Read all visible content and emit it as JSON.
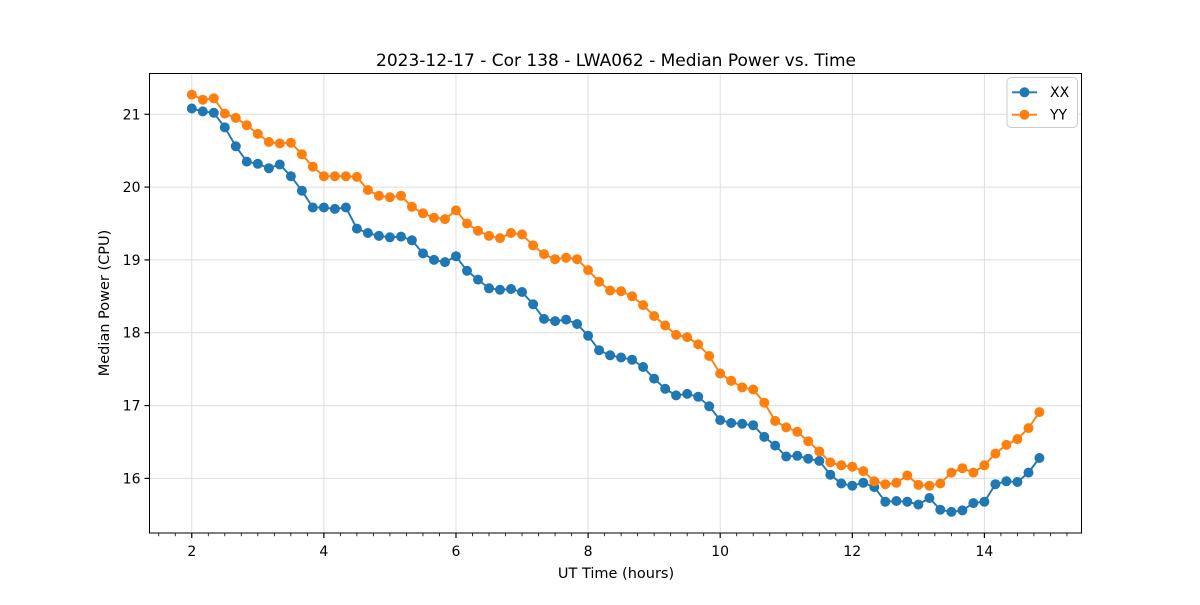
{
  "figure": {
    "background": "#ffffff",
    "spine_color": "#000000",
    "grid_color": "#dedede",
    "tick_color": "#000000"
  },
  "chart_data": {
    "type": "line",
    "title": "2023-12-17 - Cor 138 - LWA062 - Median Power vs. Time",
    "xlabel": "UT Time (hours)",
    "ylabel": "Median Power (CPU)",
    "xlim": [
      1.36,
      15.47
    ],
    "ylim": [
      15.25,
      21.56
    ],
    "x_major_ticks": [
      2,
      4,
      6,
      8,
      10,
      12,
      14
    ],
    "x_minor_tick_step": 0.25,
    "y_major_ticks": [
      16,
      17,
      18,
      19,
      20,
      21
    ],
    "grid": true,
    "legend": {
      "position": "upper right",
      "entries": [
        "XX",
        "YY"
      ]
    },
    "marker": "circle",
    "x": [
      2.0,
      2.167,
      2.333,
      2.5,
      2.667,
      2.833,
      3.0,
      3.167,
      3.333,
      3.5,
      3.667,
      3.833,
      4.0,
      4.167,
      4.333,
      4.5,
      4.667,
      4.833,
      5.0,
      5.167,
      5.333,
      5.5,
      5.667,
      5.833,
      6.0,
      6.167,
      6.333,
      6.5,
      6.667,
      6.833,
      7.0,
      7.167,
      7.333,
      7.5,
      7.667,
      7.833,
      8.0,
      8.167,
      8.333,
      8.5,
      8.667,
      8.833,
      9.0,
      9.167,
      9.333,
      9.5,
      9.667,
      9.833,
      10.0,
      10.167,
      10.333,
      10.5,
      10.667,
      10.833,
      11.0,
      11.167,
      11.333,
      11.5,
      11.667,
      11.833,
      12.0,
      12.167,
      12.333,
      12.5,
      12.667,
      12.833,
      13.0,
      13.167,
      13.333,
      13.5,
      13.667,
      13.833,
      14.0,
      14.167,
      14.333,
      14.5,
      14.667,
      14.833
    ],
    "series": [
      {
        "name": "XX",
        "color": "#1f77b4",
        "values": [
          21.08,
          21.04,
          21.02,
          20.82,
          20.56,
          20.35,
          20.32,
          20.26,
          20.31,
          20.15,
          19.95,
          19.72,
          19.72,
          19.7,
          19.72,
          19.43,
          19.37,
          19.33,
          19.31,
          19.32,
          19.27,
          19.09,
          19.0,
          18.97,
          19.05,
          18.85,
          18.73,
          18.61,
          18.59,
          18.6,
          18.56,
          18.39,
          18.19,
          18.16,
          18.18,
          18.12,
          17.96,
          17.76,
          17.69,
          17.66,
          17.63,
          17.53,
          17.37,
          17.23,
          17.14,
          17.16,
          17.12,
          16.99,
          16.8,
          16.76,
          16.75,
          16.73,
          16.57,
          16.45,
          16.3,
          16.31,
          16.27,
          16.24,
          16.05,
          15.93,
          15.9,
          15.94,
          15.88,
          15.68,
          15.69,
          15.68,
          15.64,
          15.73,
          15.57,
          15.54,
          15.56,
          15.66,
          15.68,
          15.92,
          15.96,
          15.95,
          16.08,
          16.28
        ]
      },
      {
        "name": "YY",
        "color": "#ff7f0e",
        "values": [
          21.27,
          21.2,
          21.22,
          21.01,
          20.95,
          20.85,
          20.73,
          20.62,
          20.6,
          20.61,
          20.45,
          20.28,
          20.15,
          20.15,
          20.15,
          20.14,
          19.96,
          19.88,
          19.86,
          19.88,
          19.73,
          19.64,
          19.58,
          19.56,
          19.68,
          19.5,
          19.4,
          19.33,
          19.3,
          19.37,
          19.35,
          19.2,
          19.08,
          19.01,
          19.03,
          19.01,
          18.86,
          18.7,
          18.58,
          18.57,
          18.5,
          18.38,
          18.23,
          18.1,
          17.97,
          17.94,
          17.84,
          17.68,
          17.44,
          17.34,
          17.25,
          17.22,
          17.04,
          16.79,
          16.7,
          16.64,
          16.51,
          16.37,
          16.22,
          16.18,
          16.16,
          16.1,
          15.96,
          15.92,
          15.94,
          16.04,
          15.91,
          15.9,
          15.93,
          16.08,
          16.14,
          16.08,
          16.18,
          16.34,
          16.46,
          16.54,
          16.69,
          16.91
        ]
      }
    ]
  }
}
